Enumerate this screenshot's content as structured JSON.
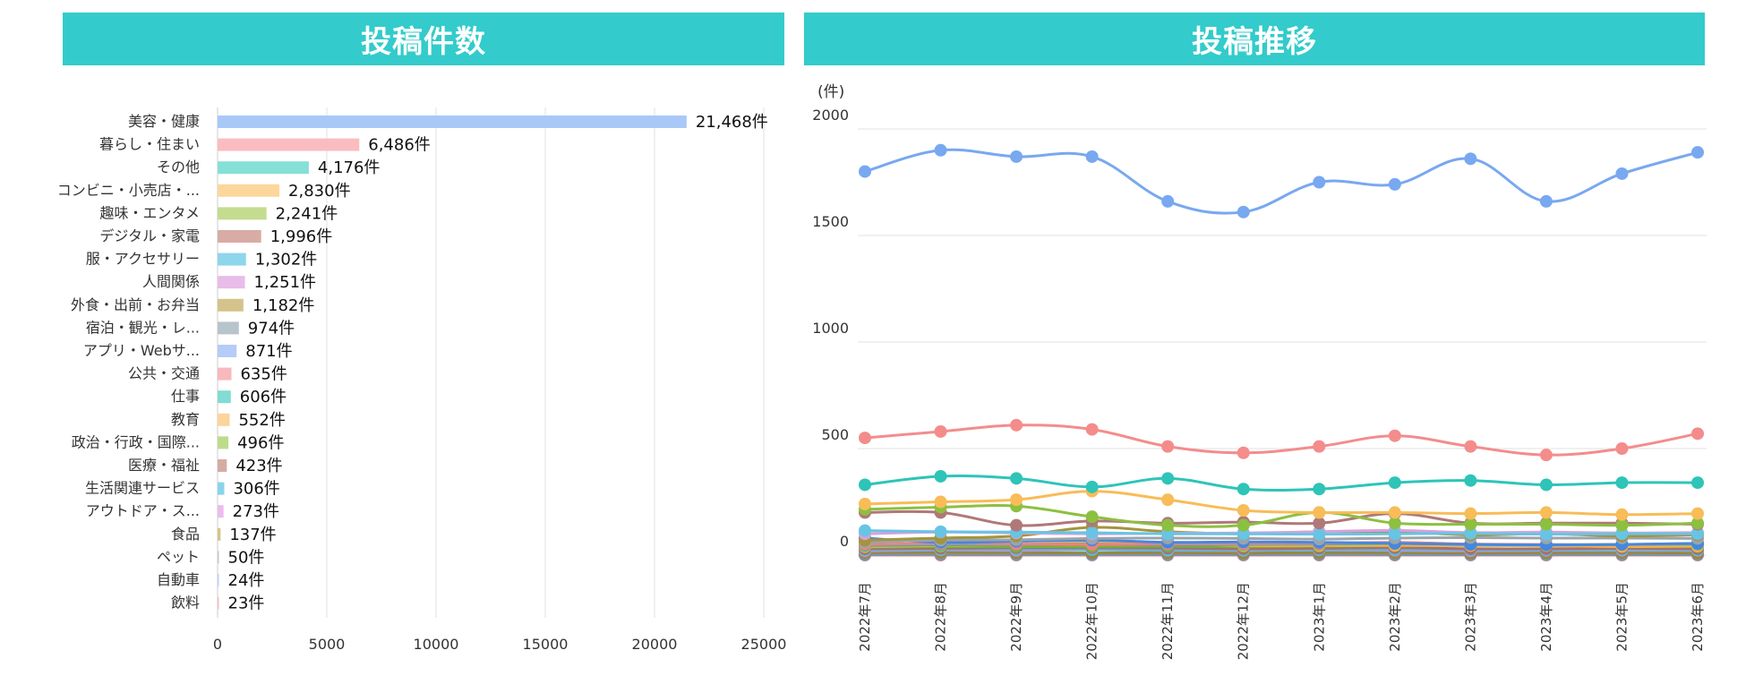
{
  "panels": {
    "left_title": "投稿件数",
    "right_title": "投稿推移"
  },
  "chart_data": [
    {
      "type": "bar",
      "orientation": "horizontal",
      "title": "投稿件数",
      "categories": [
        "美容・健康",
        "暮らし・住まい",
        "その他",
        "コンビニ・小売店・...",
        "趣味・エンタメ",
        "デジタル・家電",
        "服・アクセサリー",
        "人間関係",
        "外食・出前・お弁当",
        "宿泊・観光・レ...",
        "アプリ・Webサ...",
        "公共・交通",
        "仕事",
        "教育",
        "政治・行政・国際...",
        "医療・福祉",
        "生活関連サービス",
        "アウトドア・ス...",
        "食品",
        "ペット",
        "自動車",
        "飲料"
      ],
      "values": [
        21468,
        6486,
        4176,
        2830,
        2241,
        1996,
        1302,
        1251,
        1182,
        974,
        871,
        635,
        606,
        552,
        496,
        423,
        306,
        273,
        137,
        50,
        24,
        23
      ],
      "value_labels": [
        "21,468件",
        "6,486件",
        "4,176件",
        "2,830件",
        "2,241件",
        "1,996件",
        "1,302件",
        "1,251件",
        "1,182件",
        "974件",
        "871件",
        "635件",
        "606件",
        "552件",
        "496件",
        "423件",
        "306件",
        "273件",
        "137件",
        "50件",
        "24件",
        "23件"
      ],
      "colors": [
        "#a8c8f8",
        "#fbbcc0",
        "#86e0d8",
        "#fcd79c",
        "#c4dc90",
        "#d8aca4",
        "#8ed6ec",
        "#e8bce8",
        "#d4c48c",
        "#b8c4cc",
        "#b4ccf8",
        "#f8b8bc",
        "#80dcd4",
        "#fcd49c",
        "#bcdc8c",
        "#d4aca4",
        "#88d4ec",
        "#ecbcec",
        "#d4c488",
        "#c0c8d0",
        "#bccff8",
        "#f8bcc0"
      ],
      "xlim": [
        0,
        25000
      ],
      "xticks": [
        "0",
        "5000",
        "10000",
        "15000",
        "20000",
        "25000"
      ],
      "grid": true
    },
    {
      "type": "line",
      "title": "投稿推移",
      "unit_label": "(件)",
      "categories": [
        "2022年7月",
        "2022年8月",
        "2022年9月",
        "2022年10月",
        "2022年11月",
        "2022年12月",
        "2023年1月",
        "2023年2月",
        "2023年3月",
        "2023年4月",
        "2023年5月",
        "2023年6月"
      ],
      "ylim": [
        0,
        2000
      ],
      "yticks": [
        "0",
        "500",
        "1000",
        "1500",
        "2000"
      ],
      "grid": true,
      "series": [
        {
          "color": "#78a8f0",
          "values": [
            1800,
            1900,
            1870,
            1870,
            1660,
            1610,
            1750,
            1740,
            1860,
            1660,
            1790,
            1890
          ]
        },
        {
          "color": "#f48c8c",
          "values": [
            550,
            580,
            610,
            590,
            510,
            480,
            510,
            560,
            510,
            470,
            500,
            570
          ]
        },
        {
          "color": "#2ec4b8",
          "values": [
            330,
            370,
            360,
            320,
            360,
            310,
            310,
            340,
            350,
            330,
            340,
            340
          ]
        },
        {
          "color": "#f8bc58",
          "values": [
            240,
            250,
            260,
            300,
            260,
            210,
            200,
            200,
            195,
            200,
            190,
            195
          ]
        },
        {
          "color": "#8cc040",
          "values": [
            215,
            225,
            230,
            180,
            140,
            140,
            200,
            150,
            145,
            145,
            140,
            150
          ]
        },
        {
          "color": "#b07878",
          "values": [
            200,
            200,
            140,
            160,
            150,
            155,
            150,
            195,
            150,
            150,
            150,
            145
          ]
        },
        {
          "color": "#68c4e4",
          "values": [
            115,
            110,
            108,
            105,
            100,
            100,
            98,
            100,
            102,
            98,
            100,
            100
          ]
        },
        {
          "color": "#d8a0dc",
          "values": [
            100,
            108,
            104,
            100,
            102,
            104,
            110,
            116,
            106,
            108,
            104,
            106
          ]
        },
        {
          "color": "#a4943c",
          "values": [
            70,
            80,
            90,
            130,
            110,
            100,
            110,
            110,
            95,
            100,
            90,
            95
          ]
        },
        {
          "color": "#9aa4ac",
          "values": [
            60,
            70,
            72,
            78,
            80,
            78,
            75,
            80,
            82,
            80,
            80,
            78
          ]
        },
        {
          "color": "#4488e0",
          "values": [
            80,
            60,
            65,
            70,
            60,
            62,
            60,
            55,
            50,
            48,
            50,
            55
          ]
        },
        {
          "color": "#f08080",
          "values": [
            50,
            54,
            52,
            50,
            52,
            54,
            55,
            60,
            52,
            50,
            50,
            55
          ]
        },
        {
          "color": "#34b4a8",
          "values": [
            45,
            48,
            50,
            52,
            48,
            50,
            52,
            55,
            50,
            48,
            50,
            52
          ]
        },
        {
          "color": "#f4b048",
          "values": [
            40,
            45,
            50,
            60,
            55,
            45,
            45,
            45,
            45,
            45,
            40,
            42
          ]
        },
        {
          "color": "#78b038",
          "values": [
            38,
            40,
            40,
            40,
            42,
            40,
            42,
            45,
            45,
            45,
            42,
            40
          ]
        },
        {
          "color": "#a87070",
          "values": [
            30,
            32,
            35,
            35,
            33,
            30,
            32,
            35,
            30,
            30,
            32,
            30
          ]
        },
        {
          "color": "#5ab8dc",
          "values": [
            25,
            26,
            28,
            25,
            24,
            24,
            25,
            26,
            25,
            24,
            25,
            24
          ]
        },
        {
          "color": "#c890d0",
          "values": [
            20,
            24,
            22,
            25,
            22,
            22,
            24,
            22,
            20,
            22,
            22,
            22
          ]
        },
        {
          "color": "#98883c",
          "values": [
            12,
            14,
            12,
            10,
            12,
            10,
            12,
            12,
            10,
            12,
            12,
            10
          ]
        },
        {
          "color": "#889098",
          "values": [
            5,
            4,
            4,
            5,
            4,
            4,
            4,
            4,
            5,
            4,
            4,
            4
          ]
        },
        {
          "color": "#6098e8",
          "values": [
            2,
            3,
            2,
            2,
            2,
            2,
            2,
            2,
            2,
            2,
            2,
            2
          ]
        },
        {
          "color": "#f47c80",
          "values": [
            0,
            0,
            0,
            0,
            0,
            0,
            0,
            0,
            0,
            0,
            0,
            0
          ]
        }
      ]
    }
  ]
}
